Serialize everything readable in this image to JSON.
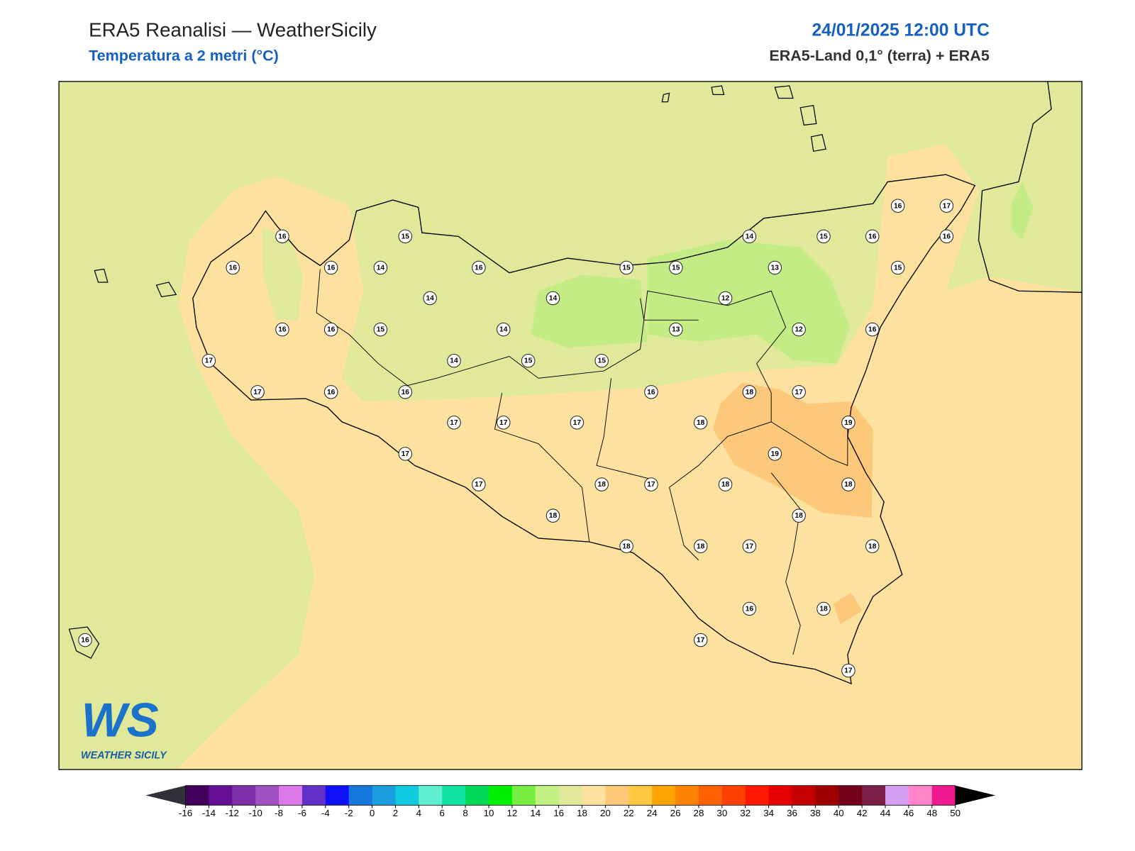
{
  "header": {
    "title": "ERA5 Reanalisi — WeatherSicily",
    "subtitle": "Temperatura a 2 metri (°C)",
    "datetime": "24/01/2025 12:00 UTC",
    "source": "ERA5-Land 0,1° (terra) + ERA5"
  },
  "map": {
    "stations": [
      16,
      15,
      16,
      16,
      14,
      16,
      14,
      14,
      16,
      16,
      15,
      14,
      14,
      15,
      15,
      17,
      17,
      16,
      16,
      17,
      17,
      17,
      17,
      17,
      18,
      15,
      15,
      14,
      15,
      16,
      16,
      17,
      16,
      13,
      15,
      12,
      13,
      12,
      16,
      16,
      18,
      17,
      18,
      19,
      19,
      18,
      17,
      18,
      18,
      18,
      18,
      18,
      17,
      18,
      16,
      18,
      17,
      17,
      16
    ]
  },
  "logo": {
    "mark": "WS",
    "name": "WEATHER SICILY"
  },
  "colorbar": {
    "ticks": [
      -16,
      -14,
      -12,
      -10,
      -8,
      -6,
      -4,
      -2,
      0,
      2,
      4,
      6,
      8,
      10,
      12,
      14,
      16,
      18,
      20,
      22,
      24,
      26,
      28,
      30,
      32,
      34,
      36,
      38,
      40,
      42,
      44,
      46,
      48,
      50
    ],
    "colors": [
      "#42005a",
      "#650f94",
      "#7d30a8",
      "#a050c0",
      "#dc78e8",
      "#6030c8",
      "#1010f8",
      "#1478dc",
      "#1a9ee0",
      "#10cae0",
      "#60f0d0",
      "#10e2a0",
      "#00d858",
      "#00f000",
      "#78ee40",
      "#c2f082",
      "#e0e89a",
      "#fde19e",
      "#fdc878",
      "#ffc840",
      "#ffa400",
      "#ff8200",
      "#ff6000",
      "#ff4000",
      "#ff1800",
      "#e40000",
      "#c40000",
      "#9e0000",
      "#720018",
      "#7c2048",
      "#d8a0f4",
      "#ff84c8",
      "#f01a90",
      "#808080",
      "#383838"
    ],
    "under_color": "#303038",
    "over_color": "#000000"
  }
}
